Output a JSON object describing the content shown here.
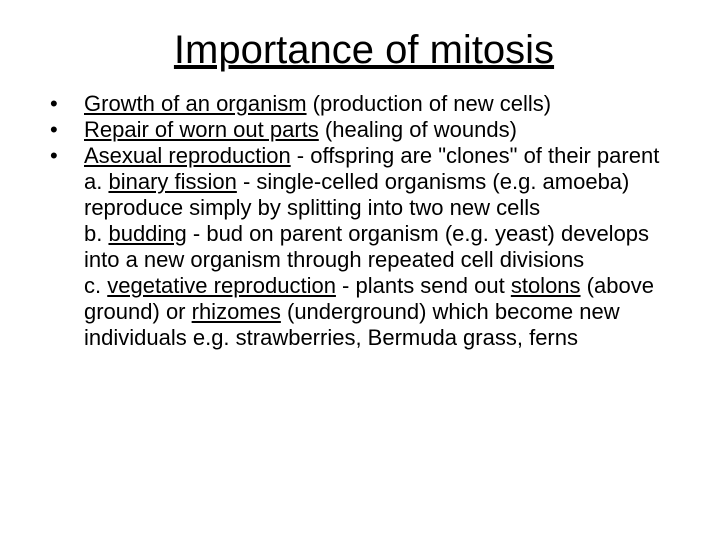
{
  "title": "Importance of mitosis",
  "bullets": [
    {
      "underlined": "Growth of an organism",
      "rest": " (production of new cells)"
    },
    {
      "underlined": "Repair of worn out parts",
      "rest": " (healing of wounds)"
    },
    {
      "underlined": "Asexual reproduction",
      "rest": " - offspring are \"clones\" of their parent"
    }
  ],
  "subs": [
    {
      "letter": "a. ",
      "u1": "binary fission",
      "t1": " - single-celled organisms (e.g.  amoeba) reproduce simply by splitting into two new cells"
    },
    {
      "letter": "b. ",
      "u1": "budding",
      "t1": " - bud on parent organism (e.g. yeast)  develops into a new organism through repeated cell divisions"
    },
    {
      "letter": "c. ",
      "u1": "vegetative reproduction",
      "t1": " - plants send out ",
      "u2": "stolons",
      "t2": "  (above ground) or ",
      "u3": "rhizomes",
      "t3": " (underground) which become new individuals e.g. strawberries, Bermuda grass, ferns"
    }
  ],
  "colors": {
    "background": "#ffffff",
    "text": "#000000"
  },
  "fonts": {
    "title_size": 40,
    "body_size": 22,
    "family": "Arial"
  }
}
